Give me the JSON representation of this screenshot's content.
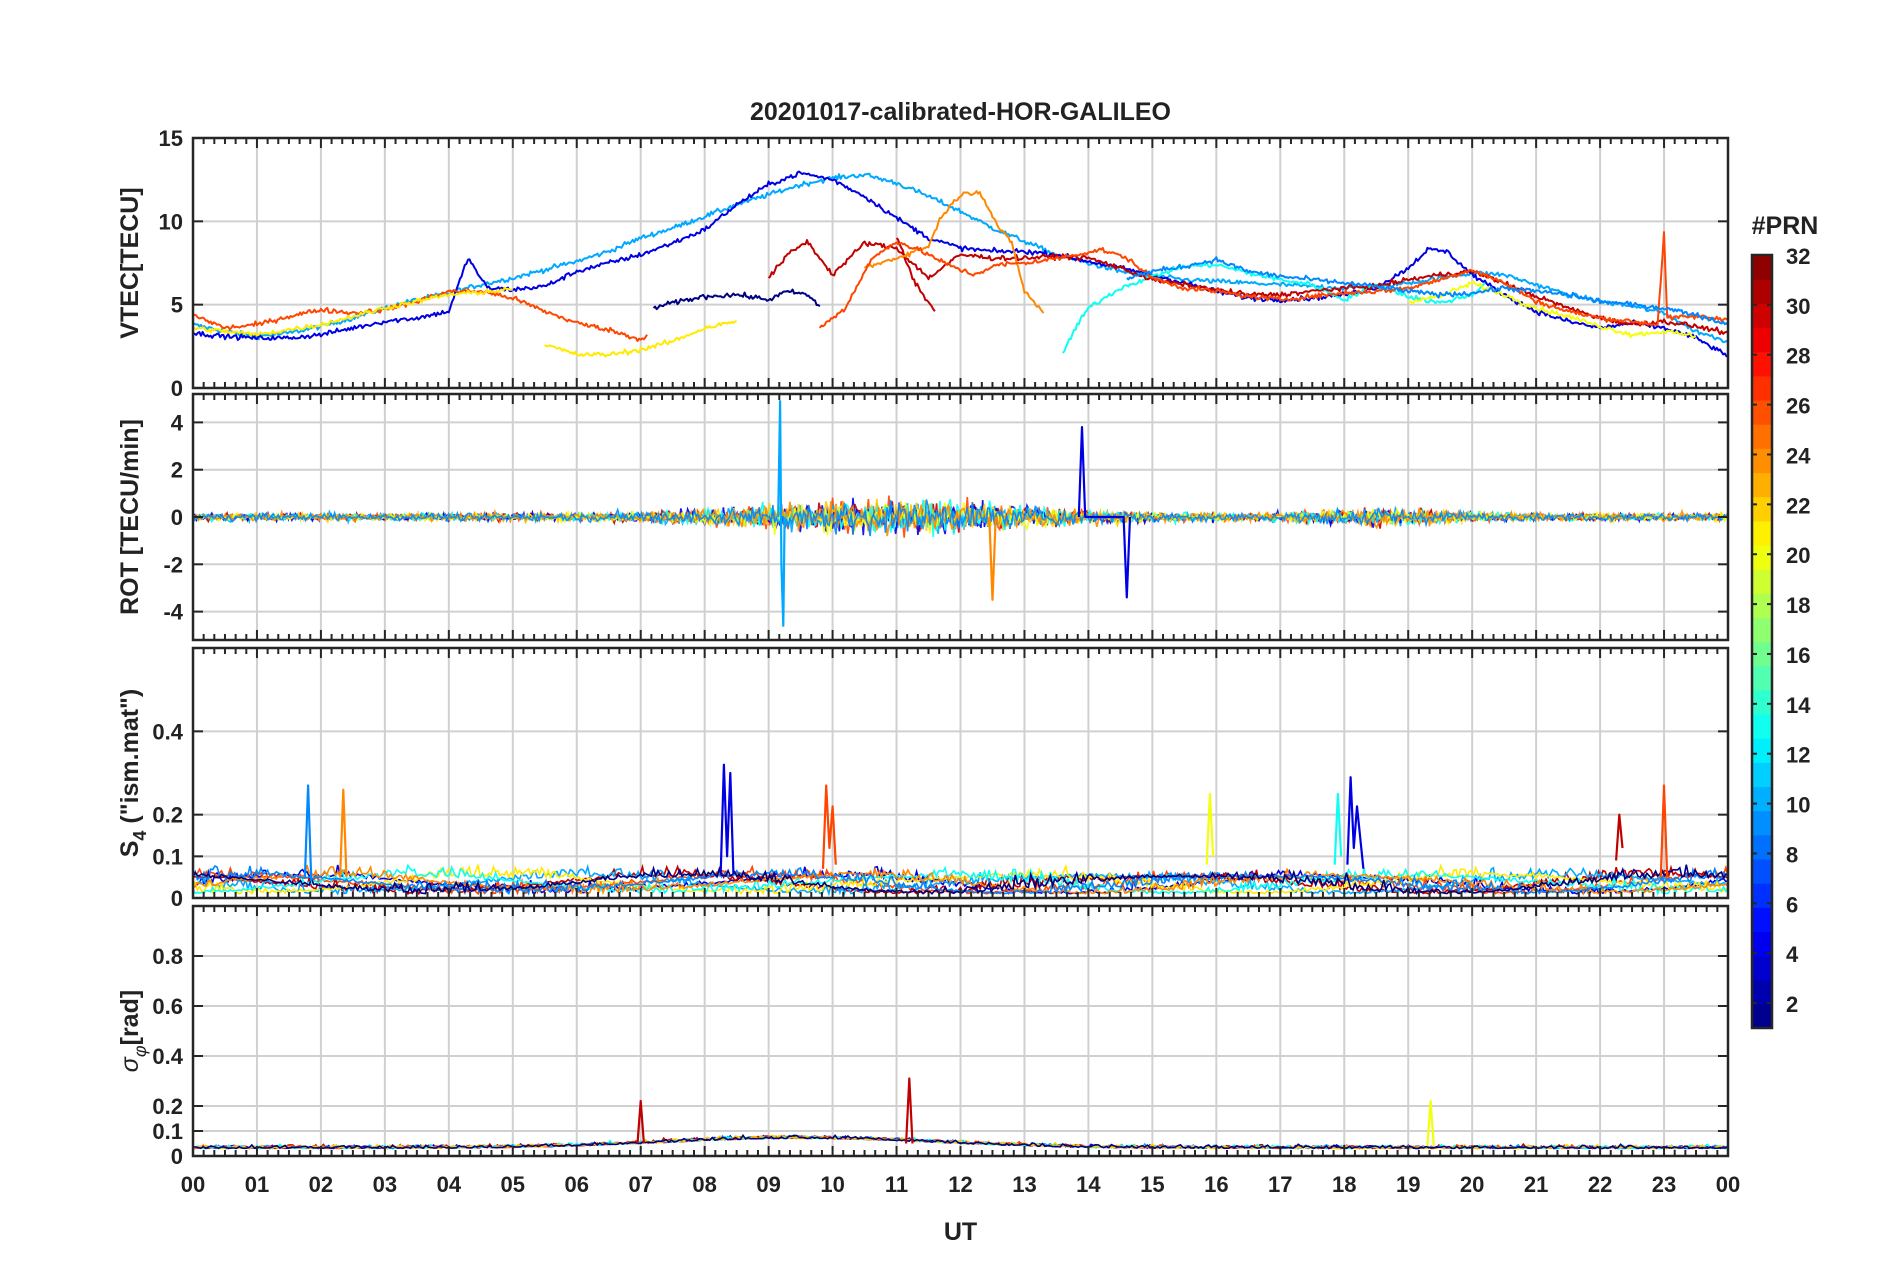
{
  "chart_data": {
    "type": "line",
    "title": "20201017-calibrated-HOR-GALILEO",
    "xlabel": "UT",
    "x_tick_labels": [
      "00",
      "01",
      "02",
      "03",
      "04",
      "05",
      "06",
      "07",
      "08",
      "09",
      "10",
      "11",
      "12",
      "13",
      "14",
      "15",
      "16",
      "17",
      "18",
      "19",
      "20",
      "21",
      "22",
      "23",
      "00"
    ],
    "xlim": [
      0,
      24
    ],
    "grid": true,
    "panels": [
      {
        "id": "vtec",
        "ylabel": "VTEC[TECU]",
        "ylim": [
          0,
          15
        ],
        "y_ticks": [
          0,
          5,
          10,
          15
        ],
        "y_tick_labels": [
          "0",
          "5",
          "10",
          "15"
        ],
        "series": [
          {
            "prn": 10,
            "x": [
              0,
              0.5,
              1,
              1.5,
              2,
              2.5,
              3,
              3.5,
              4,
              4.5,
              5,
              5.5,
              6,
              6.5,
              7,
              7.5,
              8,
              8.5,
              9,
              9.5,
              10,
              10.5,
              11,
              11.5,
              12,
              12.5,
              13,
              13.5,
              14,
              14.5,
              15,
              15.5,
              16,
              16.5,
              17,
              17.5,
              18,
              18.5,
              19,
              19.5,
              20,
              20.5,
              21,
              21.5,
              22,
              22.5,
              23,
              23.5,
              24
            ],
            "y": [
              3.8,
              3.4,
              3.1,
              3.3,
              3.7,
              4.2,
              4.8,
              5.3,
              5.7,
              6.2,
              6.6,
              7.1,
              7.6,
              8.2,
              9,
              9.6,
              10.3,
              11,
              11.6,
              12.2,
              12.6,
              12.8,
              12.3,
              11.5,
              10.6,
              9.6,
              8.8,
              8,
              7.5,
              7,
              6.7,
              6.5,
              6.4,
              6.3,
              6.2,
              6.1,
              6,
              6.1,
              6.3,
              6.6,
              6.9,
              6.8,
              6.2,
              5.6,
              5.2,
              4.9,
              4.5,
              3.4,
              2.8
            ]
          },
          {
            "prn": 4,
            "x": [
              0,
              0.5,
              1,
              1.5,
              2,
              2.5,
              3,
              3.5,
              4,
              4.3,
              4.6,
              5,
              5.5,
              6,
              6.5,
              7,
              7.5,
              8,
              8.5,
              9,
              9.5,
              10,
              10.5,
              11,
              11.5,
              12,
              12.5,
              13,
              13.5,
              14,
              14.5,
              15,
              15.5,
              16,
              16.5,
              17,
              17.5,
              18,
              18.5,
              19,
              19.3,
              19.6,
              20,
              20.5,
              21,
              21.5,
              22,
              22.5,
              23,
              23.5,
              24
            ],
            "y": [
              3.3,
              3.1,
              3,
              3,
              3.2,
              3.6,
              4,
              4.2,
              4.6,
              7.8,
              6,
              5.9,
              6.1,
              7,
              7.5,
              8,
              8.7,
              9.5,
              11,
              12.2,
              12.9,
              12.5,
              11.5,
              10.2,
              9,
              8.4,
              8.2,
              8.2,
              8,
              7.6,
              7.2,
              6.8,
              6.3,
              5.8,
              5.4,
              5.3,
              5.4,
              5.6,
              6,
              7.2,
              8.3,
              8.2,
              6.8,
              5.6,
              4.6,
              4,
              3.6,
              3.9,
              3.6,
              3,
              1.9
            ]
          },
          {
            "prn": 1,
            "x": [
              7.2,
              7.5,
              8,
              8.5,
              9,
              9.3,
              9.6,
              9.8
            ],
            "y": [
              4.8,
              5.1,
              5.5,
              5.6,
              5.3,
              5.8,
              5.6,
              4.9
            ]
          },
          {
            "prn": 26,
            "x": [
              0,
              0.5,
              1,
              1.5,
              2,
              2.5,
              3,
              3.5,
              4,
              4.5,
              5,
              5.5,
              6,
              6.5,
              7,
              7.1
            ],
            "y": [
              4.4,
              3.6,
              3.8,
              4.3,
              4.7,
              4.5,
              4.7,
              5.2,
              5.8,
              5.8,
              5.4,
              4.6,
              3.9,
              3.5,
              2.9,
              3.2
            ]
          },
          {
            "prn": 21,
            "x": [
              5.5,
              6,
              6.5,
              7,
              7.5,
              8,
              8.5
            ],
            "y": [
              2.6,
              2,
              2,
              2.3,
              2.8,
              3.6,
              4
            ]
          },
          {
            "prn": 21,
            "x": [
              0,
              1,
              2,
              3,
              4,
              5
            ],
            "y": [
              3.6,
              3.2,
              3.8,
              4.8,
              5.6,
              5.9
            ]
          },
          {
            "prn": 13,
            "x": [
              13.6,
              13.8,
              14,
              14.5,
              15,
              15.5,
              16,
              16.5,
              17,
              17.5,
              18,
              18.5,
              19,
              19.5,
              20,
              20.2
            ],
            "y": [
              2.1,
              3.6,
              4.8,
              6,
              6.7,
              7.3,
              7.4,
              6.9,
              6.5,
              6.2,
              5.3,
              6.2,
              5.5,
              5.1,
              5.6,
              6.3
            ]
          },
          {
            "prn": 30,
            "x": [
              9,
              9.3,
              9.6,
              10,
              10.5,
              11,
              11.5,
              12,
              12.5,
              13,
              13.5,
              14,
              14.5,
              15,
              15.5,
              16,
              16.5,
              17,
              17.5,
              18,
              18.5,
              19,
              19.5,
              20,
              20.5,
              21,
              21.5,
              22,
              22.5,
              23,
              23.5,
              24
            ],
            "y": [
              6.6,
              8,
              8.8,
              6.8,
              8.7,
              8.4,
              6.6,
              8,
              7.8,
              7.8,
              7.9,
              7.8,
              7.2,
              6.5,
              6.2,
              5.9,
              5.6,
              5.6,
              5.8,
              6,
              6.1,
              6.5,
              6.8,
              7,
              6.3,
              5.5,
              4.8,
              4.2,
              3.8,
              4,
              3.7,
              3.3
            ]
          },
          {
            "prn": 30,
            "x": [
              11,
              11.3,
              11.6
            ],
            "y": [
              9,
              6.2,
              4.6
            ]
          },
          {
            "prn": 24,
            "x": [
              10.5,
              11,
              11.5,
              11.7,
              12,
              12.3,
              12.6,
              12.8,
              13,
              13.3
            ],
            "y": [
              7.2,
              7.8,
              8.5,
              10.3,
              11.6,
              11.8,
              9.6,
              8.7,
              5.8,
              4.5
            ]
          },
          {
            "prn": 26,
            "x": [
              9.8,
              10.2,
              10.6,
              11,
              11.4,
              11.8,
              12.2,
              12.6,
              13,
              13.4,
              13.8,
              14.2,
              14.6,
              15,
              15.5,
              16,
              16.5,
              17,
              17.5,
              18,
              18.5,
              19,
              19.5,
              20,
              20.5,
              21,
              21.5,
              22,
              22.5,
              22.9,
              23,
              23.05,
              23.1,
              23.5,
              24
            ],
            "y": [
              3.6,
              4.8,
              7.7,
              8.8,
              8.2,
              7.4,
              6.8,
              7.4,
              7.5,
              7.7,
              8,
              8.3,
              7.8,
              6.6,
              6,
              5.8,
              5.5,
              5.3,
              5.5,
              5.7,
              5.8,
              6,
              6.5,
              7.1,
              6.3,
              5.2,
              4.6,
              4.2,
              4,
              3.8,
              9.3,
              4.2,
              4.2,
              4.3,
              4.1
            ]
          },
          {
            "prn": 20,
            "x": [
              19,
              19.5,
              20,
              20.5,
              21,
              21.5,
              22,
              22.5,
              23,
              23.5
            ],
            "y": [
              5.2,
              5.5,
              6.3,
              5.6,
              4.8,
              4.3,
              3.7,
              3.2,
              3.4,
              3.1
            ]
          },
          {
            "prn": 9,
            "x": [
              14.6,
              15,
              15.5,
              16,
              16.5,
              17,
              17.5,
              18,
              18.5,
              19,
              19.5,
              20,
              20.5,
              21,
              21.5,
              22,
              22.5,
              23,
              23.5,
              24
            ],
            "y": [
              6.6,
              7,
              7.3,
              7.7,
              7,
              6.7,
              6.5,
              6.3,
              6.1,
              5.8,
              5.6,
              5.7,
              6,
              5.8,
              5.6,
              5.2,
              5,
              4.8,
              4.4,
              3.8
            ]
          }
        ]
      },
      {
        "id": "rot",
        "ylabel": "ROT [TECU/min]",
        "ylim": [
          -5.2,
          5.2
        ],
        "y_ticks": [
          -4,
          -2,
          0,
          2,
          4
        ],
        "y_tick_labels": [
          "-4",
          "-2",
          "0",
          "2",
          "4"
        ],
        "series": [
          {
            "prn": 10,
            "x": [
              9.15,
              9.18,
              9.2,
              9.23,
              9.25
            ],
            "y": [
              0,
              4.9,
              -2,
              -4.6,
              0
            ]
          },
          {
            "prn": 4,
            "x": [
              13.85,
              13.9,
              13.95,
              14.55,
              14.6,
              14.65
            ],
            "y": [
              0,
              3.8,
              0,
              0,
              -3.4,
              0
            ]
          },
          {
            "prn": 24,
            "x": [
              12.45,
              12.5,
              12.55
            ],
            "y": [
              0,
              -3.5,
              0
            ]
          }
        ]
      },
      {
        "id": "s4",
        "ylabel": "S4 (\"ism.mat\")",
        "ylim": [
          0,
          0.6
        ],
        "y_ticks": [
          0,
          0.1,
          0.2,
          0.4
        ],
        "y_tick_labels": [
          "0",
          "0.1",
          "0.2",
          "0.4"
        ],
        "series": [
          {
            "prn": 4,
            "x": [
              8.25,
              8.3,
              8.35,
              8.4,
              8.45
            ],
            "y": [
              0.06,
              0.32,
              0.1,
              0.3,
              0.06
            ]
          },
          {
            "prn": 4,
            "x": [
              18.05,
              18.1,
              18.15,
              18.2,
              18.3
            ],
            "y": [
              0.08,
              0.29,
              0.12,
              0.22,
              0.07
            ]
          },
          {
            "prn": 26,
            "x": [
              9.85,
              9.9,
              9.95,
              10,
              10.05
            ],
            "y": [
              0.07,
              0.27,
              0.12,
              0.22,
              0.08
            ]
          },
          {
            "prn": 26,
            "x": [
              22.95,
              23,
              23.05
            ],
            "y": [
              0.05,
              0.27,
              0.05
            ]
          },
          {
            "prn": 24,
            "x": [
              2.3,
              2.35,
              2.4
            ],
            "y": [
              0.05,
              0.26,
              0.05
            ]
          },
          {
            "prn": 9,
            "x": [
              1.75,
              1.8,
              1.85
            ],
            "y": [
              0.05,
              0.27,
              0.04
            ]
          },
          {
            "prn": 20,
            "x": [
              15.85,
              15.9,
              15.95
            ],
            "y": [
              0.08,
              0.25,
              0.1
            ]
          },
          {
            "prn": 13,
            "x": [
              17.85,
              17.9,
              17.95
            ],
            "y": [
              0.08,
              0.25,
              0.1
            ]
          },
          {
            "prn": 30,
            "x": [
              22.25,
              22.3,
              22.35
            ],
            "y": [
              0.09,
              0.2,
              0.12
            ]
          }
        ]
      },
      {
        "id": "sigma",
        "ylabel": "σφ[rad]",
        "ylim": [
          0,
          1
        ],
        "y_ticks": [
          0,
          0.1,
          0.2,
          0.4,
          0.6,
          0.8
        ],
        "y_tick_labels": [
          "0",
          "0.1",
          "0.2",
          "0.4",
          "0.6",
          "0.8"
        ],
        "series": [
          {
            "prn": 30,
            "x": [
              11.15,
              11.2,
              11.25
            ],
            "y": [
              0.05,
              0.31,
              0.05
            ]
          },
          {
            "prn": 30,
            "x": [
              6.95,
              7,
              7.05
            ],
            "y": [
              0.05,
              0.22,
              0.05
            ]
          },
          {
            "prn": 20,
            "x": [
              19.3,
              19.35,
              19.4
            ],
            "y": [
              0.04,
              0.22,
              0.04
            ]
          }
        ]
      }
    ],
    "colorbar": {
      "label": "#PRN",
      "colormap": "jet",
      "range": [
        1,
        32
      ],
      "ticks": [
        2,
        4,
        6,
        8,
        10,
        12,
        14,
        16,
        18,
        20,
        22,
        24,
        26,
        28,
        30,
        32
      ],
      "tick_labels": [
        "2",
        "4",
        "6",
        "8",
        "10",
        "12",
        "14",
        "16",
        "18",
        "20",
        "22",
        "24",
        "26",
        "28",
        "30",
        "32"
      ]
    }
  }
}
